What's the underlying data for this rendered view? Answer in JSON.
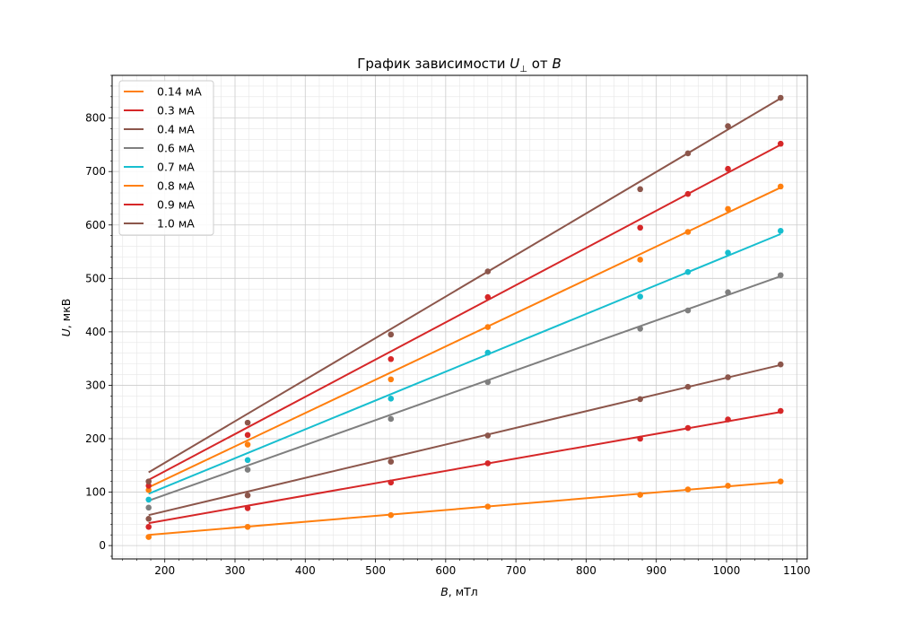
{
  "chart_data": {
    "type": "scatter",
    "title_parts": [
      "График зависимости ",
      "U",
      "⊥",
      " от ",
      "B"
    ],
    "xlabel_parts": [
      "B",
      ", мТл"
    ],
    "ylabel_parts": [
      "U",
      ", мкВ"
    ],
    "xlim": [
      125,
      1115
    ],
    "ylim": [
      -25,
      880
    ],
    "xticks": [
      200,
      300,
      400,
      500,
      600,
      700,
      800,
      900,
      1000,
      1100
    ],
    "yticks": [
      0,
      100,
      200,
      300,
      400,
      500,
      600,
      700,
      800
    ],
    "grid": true,
    "legend": "upper-left",
    "x": [
      177,
      318,
      522,
      660,
      877,
      945,
      1002,
      1077
    ],
    "series": [
      {
        "name": "0.14 мА",
        "color": "#ff7f0e",
        "values": [
          16,
          35,
          57,
          73,
          95,
          105,
          112,
          120
        ],
        "fit_start": 20,
        "fit_end": 119
      },
      {
        "name": "0.3 мА",
        "color": "#d62728",
        "values": [
          35,
          70,
          118,
          154,
          200,
          220,
          236,
          252
        ],
        "fit_start": 42,
        "fit_end": 250
      },
      {
        "name": "0.4 мА",
        "color": "#8c564b",
        "values": [
          50,
          94,
          157,
          206,
          274,
          297,
          315,
          339
        ],
        "fit_start": 57,
        "fit_end": 338
      },
      {
        "name": "0.6 мА",
        "color": "#7f7f7f",
        "values": [
          71,
          142,
          237,
          306,
          406,
          440,
          474,
          506
        ],
        "fit_start": 84,
        "fit_end": 504
      },
      {
        "name": "0.7 мА",
        "color": "#17becf",
        "values": [
          86,
          160,
          275,
          361,
          466,
          512,
          548,
          589
        ],
        "fit_start": 97,
        "fit_end": 583
      },
      {
        "name": "0.8 мА",
        "color": "#ff7f0e",
        "values": [
          104,
          189,
          311,
          409,
          535,
          587,
          630,
          672
        ],
        "fit_start": 109,
        "fit_end": 670
      },
      {
        "name": "0.9 мА",
        "color": "#d62728",
        "values": [
          112,
          207,
          349,
          465,
          595,
          658,
          705,
          752
        ],
        "fit_start": 123,
        "fit_end": 750
      },
      {
        "name": "1.0 мА",
        "color": "#8c564b",
        "values": [
          120,
          230,
          395,
          513,
          667,
          734,
          785,
          838
        ],
        "fit_start": 137,
        "fit_end": 837
      }
    ]
  }
}
